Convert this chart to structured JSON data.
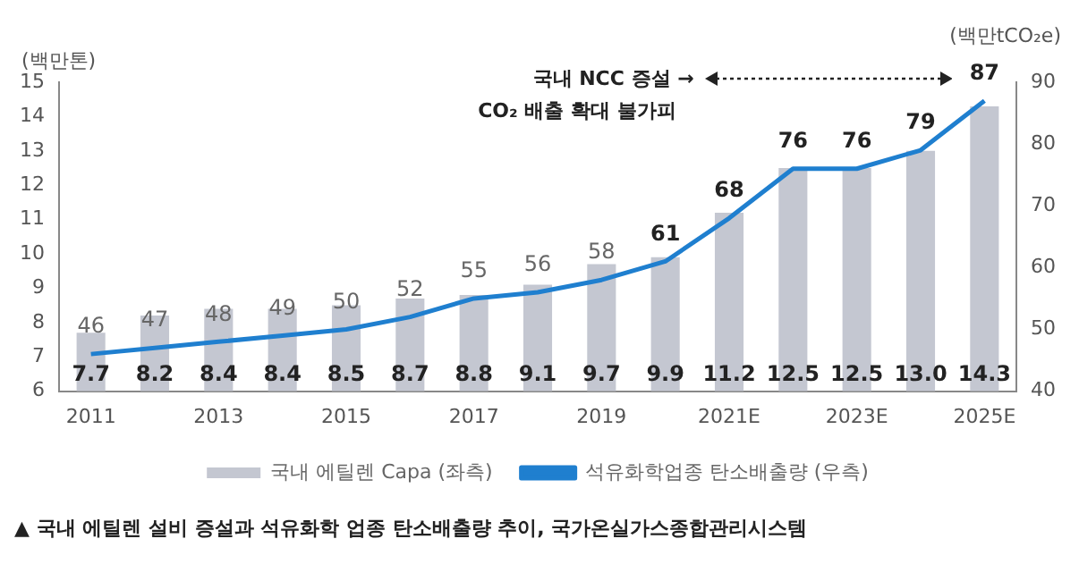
{
  "chart_data": {
    "type": "bar",
    "categories": [
      "2011",
      null,
      "2013",
      null,
      "2015",
      null,
      "2017",
      null,
      "2019",
      null,
      "2021E",
      null,
      "2023E",
      null,
      "2025E"
    ],
    "series": [
      {
        "name": "국내 에틸렌 Capa (좌측)",
        "color": "#c4c7d1",
        "values": [
          7.7,
          8.2,
          8.4,
          8.4,
          8.5,
          8.7,
          8.8,
          9.1,
          9.7,
          9.9,
          11.2,
          12.5,
          12.5,
          13.0,
          14.3
        ],
        "value_labels": [
          "7.7",
          "8.2",
          "8.4",
          "8.4",
          "8.5",
          "8.7",
          "8.8",
          "9.1",
          "9.7",
          "9.9",
          "11.2",
          "12.5",
          "12.5",
          "13.0",
          "14.3"
        ]
      },
      {
        "name": "석유화학업종 탄소배출량 (우측)",
        "type": "line",
        "axis": "y2",
        "color": "#1f7fcf",
        "values": [
          46,
          47,
          48,
          49,
          50,
          52,
          55,
          56,
          58,
          61,
          68,
          76,
          76,
          79,
          87
        ],
        "value_labels": [
          "46",
          "47",
          "48",
          "49",
          "50",
          "52",
          "55",
          "56",
          "58",
          "61",
          "68",
          "76",
          "76",
          "79",
          "87"
        ]
      }
    ],
    "ylabel": "(백만톤)",
    "y2label": "(백만tCO₂e)",
    "ylim": [
      6,
      15
    ],
    "yticks": [
      6,
      7,
      8,
      9,
      10,
      11,
      12,
      13,
      14,
      15
    ],
    "y2lim": [
      40,
      90
    ],
    "y2ticks": [
      40,
      50,
      60,
      70,
      80,
      90
    ],
    "grid": false,
    "legend": "bottom",
    "marker": "none",
    "line_style": "solid",
    "annotations": [
      "국내 NCC 증설 →",
      "CO₂ 배출 확대 불가피",
      "▲ 국내 에틸렌 설비 증설과 석유화학 업종 탄소배출량 추이, 국가온실가스종합관리시스템"
    ]
  }
}
